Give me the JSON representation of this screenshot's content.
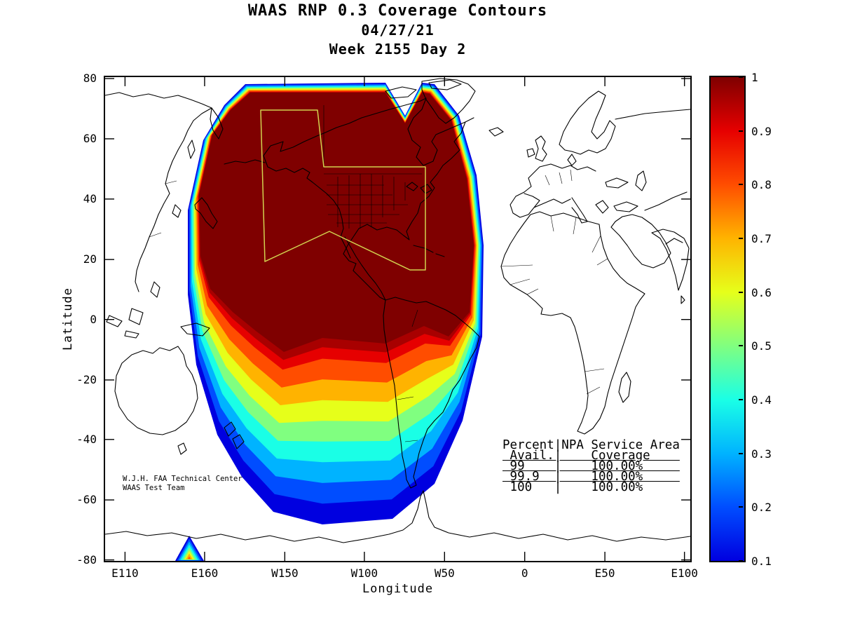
{
  "title": {
    "line1": "WAAS RNP 0.3 Coverage Contours",
    "line2": "04/27/21",
    "line3": "Week 2155 Day 2"
  },
  "axes": {
    "x": {
      "label": "Longitude",
      "ticks": [
        {
          "label": "E110",
          "pos": 0.034
        },
        {
          "label": "E160",
          "pos": 0.17
        },
        {
          "label": "W150",
          "pos": 0.307
        },
        {
          "label": "W100",
          "pos": 0.443
        },
        {
          "label": "W50",
          "pos": 0.58
        },
        {
          "label": "0",
          "pos": 0.717
        },
        {
          "label": "E50",
          "pos": 0.854
        },
        {
          "label": "E100",
          "pos": 0.99
        }
      ]
    },
    "y": {
      "label": "Latitude",
      "ticks": [
        {
          "label": "80",
          "pos": 0.003
        },
        {
          "label": "60",
          "pos": 0.1275
        },
        {
          "label": "40",
          "pos": 0.252
        },
        {
          "label": "20",
          "pos": 0.377
        },
        {
          "label": "0",
          "pos": 0.501
        },
        {
          "label": "-20",
          "pos": 0.626
        },
        {
          "label": "-40",
          "pos": 0.749
        },
        {
          "label": "-60",
          "pos": 0.874
        },
        {
          "label": "-80",
          "pos": 0.998
        }
      ]
    }
  },
  "colorbar": {
    "ticks": [
      "1",
      "0.9",
      "0.8",
      "0.7",
      "0.6",
      "0.5",
      "0.4",
      "0.3",
      "0.2",
      "0.1"
    ],
    "colors": [
      "#7f0000",
      "#e60000",
      "#ff4d00",
      "#ffb300",
      "#e6ff1a",
      "#80ff80",
      "#1affe6",
      "#00b3ff",
      "#004dff",
      "#0000e0"
    ]
  },
  "annotations": {
    "credit": [
      "W.J.H. FAA Technical Center",
      "WAAS Test Team"
    ],
    "table": [
      {
        "text": "Percent|NPA Service Area",
        "u": false
      },
      {
        "text": " Avail.|    Coverage    ",
        "u": true
      },
      {
        "text": " 99    |    100.00%     ",
        "u": true
      },
      {
        "text": " 99.9  |    100.00%     ",
        "u": true
      },
      {
        "text": " 100   |    100.00%     ",
        "u": false
      }
    ]
  },
  "chart_data": {
    "type": "heatmap",
    "subtype": "filled-contour-coverage-map",
    "title": "WAAS RNP 0.3 Coverage Contours",
    "date": "04/27/21",
    "week_day": "Week 2155 Day 2",
    "xlabel": "Longitude",
    "ylabel": "Latitude",
    "x_tick_labels": [
      "E110",
      "E160",
      "W150",
      "W100",
      "W50",
      "0",
      "E50",
      "E100"
    ],
    "y_tick_labels": [
      80,
      60,
      40,
      20,
      0,
      -20,
      -40,
      -60,
      -80
    ],
    "colorbar_range": [
      0.1,
      1
    ],
    "colorbar_tick_labels": [
      1,
      0.9,
      0.8,
      0.7,
      0.6,
      0.5,
      0.4,
      0.3,
      0.2,
      0.1
    ],
    "contour_levels": [
      0.1,
      0.2,
      0.3,
      0.4,
      0.5,
      0.6,
      0.7,
      0.8,
      0.9,
      1.0
    ],
    "inner_shade": "#a80000",
    "service_area_outline_color": "#d2d24f",
    "coverage_summary": "Coverage = 1.0 (dark red) over North America, eastern Pacific and northern South America; contour bands decrease southward through 0.9-0.1 reaching about 70S; small secondary contour peak near 165E, -80 lat",
    "availability_table": {
      "columns": [
        "Percent Avail.",
        "NPA Service Area Coverage"
      ],
      "rows": [
        [
          "99",
          "100.00%"
        ],
        [
          "99.9",
          "100.00%"
        ],
        [
          "100",
          "100.00%"
        ]
      ]
    }
  }
}
